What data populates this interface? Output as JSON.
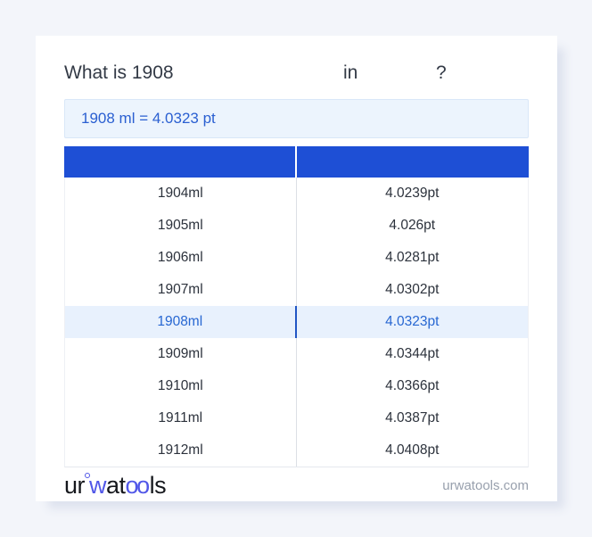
{
  "title": {
    "prefix": "What is 1908",
    "in_word": "in",
    "question_mark": "?"
  },
  "result": {
    "text": "1908 ml = 4.0323 pt"
  },
  "table": {
    "header": {
      "col_ml": "",
      "col_pt": ""
    },
    "rows": [
      {
        "ml": "1904ml",
        "pt": "4.0239pt"
      },
      {
        "ml": "1905ml",
        "pt": "4.026pt"
      },
      {
        "ml": "1906ml",
        "pt": "4.0281pt"
      },
      {
        "ml": "1907ml",
        "pt": "4.0302pt"
      },
      {
        "ml": "1908ml",
        "pt": "4.0323pt"
      },
      {
        "ml": "1909ml",
        "pt": "4.0344pt"
      },
      {
        "ml": "1910ml",
        "pt": "4.0366pt"
      },
      {
        "ml": "1911ml",
        "pt": "4.0387pt"
      },
      {
        "ml": "1912ml",
        "pt": "4.0408pt"
      }
    ],
    "highlighted_row": "1908ml"
  },
  "footer": {
    "logo": {
      "seg1": "ur",
      "seg2": "w",
      "seg3": "at",
      "seg4": "oo",
      "seg5": "ls"
    },
    "domain": "urwatools.com"
  },
  "colors": {
    "page_background": "#f3f5fa",
    "card_background": "#ffffff",
    "header_blue": "#1e4fd5",
    "highlight_row_bg": "#e8f1fd",
    "highlight_text": "#2767d2",
    "result_box_bg": "#ecf4fd",
    "result_text": "#2a5fd1",
    "logo_accent": "#5157e8"
  }
}
